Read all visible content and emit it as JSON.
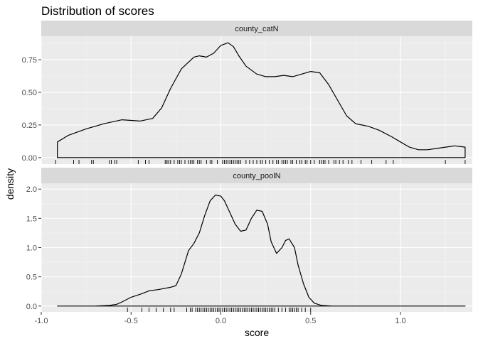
{
  "chart_data": {
    "type": "density",
    "title": "Distribution of scores",
    "xlabel": "score",
    "ylabel": "density",
    "xlim": [
      -1.0,
      1.4
    ],
    "x_ticks": [
      "-1.0",
      "-0.5",
      "0.0",
      "0.5",
      "1.0"
    ],
    "x_tick_values": [
      -1.0,
      -0.5,
      0.0,
      0.5,
      1.0
    ],
    "grid": true,
    "facets": [
      {
        "name": "county_catN",
        "ylim": [
          -0.05,
          0.93
        ],
        "y_ticks": [
          "0.00",
          "0.25",
          "0.50",
          "0.75"
        ],
        "y_tick_values": [
          0.0,
          0.25,
          0.5,
          0.75
        ],
        "curve": {
          "x": [
            -0.91,
            -0.85,
            -0.75,
            -0.65,
            -0.55,
            -0.45,
            -0.38,
            -0.33,
            -0.28,
            -0.22,
            -0.15,
            -0.12,
            -0.08,
            -0.04,
            0.0,
            0.04,
            0.07,
            0.1,
            0.14,
            0.2,
            0.25,
            0.3,
            0.35,
            0.4,
            0.45,
            0.5,
            0.55,
            0.6,
            0.65,
            0.7,
            0.75,
            0.82,
            0.88,
            0.95,
            1.0,
            1.05,
            1.1,
            1.15,
            1.2,
            1.3,
            1.36
          ],
          "density": [
            0.12,
            0.17,
            0.22,
            0.26,
            0.29,
            0.28,
            0.3,
            0.38,
            0.53,
            0.68,
            0.77,
            0.78,
            0.77,
            0.8,
            0.86,
            0.88,
            0.85,
            0.78,
            0.7,
            0.64,
            0.62,
            0.62,
            0.63,
            0.62,
            0.64,
            0.66,
            0.65,
            0.56,
            0.44,
            0.32,
            0.26,
            0.24,
            0.21,
            0.16,
            0.12,
            0.08,
            0.06,
            0.06,
            0.07,
            0.09,
            0.08
          ]
        },
        "rug": [
          -0.92,
          -0.82,
          -0.79,
          -0.72,
          -0.71,
          -0.62,
          -0.61,
          -0.59,
          -0.58,
          -0.46,
          -0.42,
          -0.4,
          -0.31,
          -0.3,
          -0.3,
          -0.29,
          -0.28,
          -0.26,
          -0.24,
          -0.23,
          -0.22,
          -0.2,
          -0.18,
          -0.17,
          -0.16,
          -0.15,
          -0.13,
          -0.12,
          -0.11,
          -0.08,
          -0.06,
          -0.05,
          -0.02,
          0.01,
          0.02,
          0.03,
          0.04,
          0.05,
          0.06,
          0.07,
          0.08,
          0.09,
          0.1,
          0.11,
          0.14,
          0.16,
          0.18,
          0.2,
          0.22,
          0.23,
          0.25,
          0.27,
          0.29,
          0.31,
          0.32,
          0.34,
          0.35,
          0.36,
          0.37,
          0.39,
          0.4,
          0.42,
          0.44,
          0.45,
          0.47,
          0.48,
          0.5,
          0.52,
          0.55,
          0.56,
          0.57,
          0.58,
          0.6,
          0.63,
          0.64,
          0.66,
          0.68,
          0.71,
          0.73,
          0.78,
          0.84,
          0.92,
          0.96,
          1.25,
          1.36
        ]
      },
      {
        "name": "county_poolN",
        "ylim": [
          -0.1,
          2.1
        ],
        "y_ticks": [
          "0.0",
          "0.5",
          "1.0",
          "1.5",
          "2.0"
        ],
        "y_tick_values": [
          0.0,
          0.5,
          1.0,
          1.5,
          2.0
        ],
        "curve": {
          "x": [
            -0.91,
            -0.7,
            -0.62,
            -0.58,
            -0.55,
            -0.5,
            -0.45,
            -0.4,
            -0.35,
            -0.28,
            -0.25,
            -0.22,
            -0.18,
            -0.15,
            -0.12,
            -0.09,
            -0.06,
            -0.03,
            0.0,
            0.02,
            0.05,
            0.08,
            0.11,
            0.14,
            0.17,
            0.2,
            0.23,
            0.26,
            0.28,
            0.31,
            0.34,
            0.36,
            0.38,
            0.41,
            0.43,
            0.46,
            0.49,
            0.52,
            0.56,
            0.62,
            0.7,
            0.8,
            1.0,
            1.2,
            1.36
          ],
          "density": [
            0.0,
            0.0,
            0.01,
            0.03,
            0.07,
            0.15,
            0.2,
            0.26,
            0.28,
            0.32,
            0.35,
            0.55,
            0.95,
            1.07,
            1.25,
            1.55,
            1.8,
            1.9,
            1.88,
            1.8,
            1.6,
            1.4,
            1.28,
            1.3,
            1.5,
            1.64,
            1.62,
            1.4,
            1.1,
            0.9,
            1.0,
            1.12,
            1.15,
            1.0,
            0.7,
            0.38,
            0.15,
            0.05,
            0.01,
            0.0,
            0.0,
            0.0,
            0.0,
            0.0,
            0.0
          ]
        },
        "rug": [
          -0.52,
          -0.44,
          -0.4,
          -0.36,
          -0.32,
          -0.28,
          -0.26,
          -0.19,
          -0.17,
          -0.16,
          -0.14,
          -0.13,
          -0.12,
          -0.11,
          -0.1,
          -0.09,
          -0.08,
          -0.07,
          -0.06,
          -0.05,
          -0.04,
          -0.03,
          -0.02,
          -0.01,
          0.0,
          0.01,
          0.02,
          0.03,
          0.04,
          0.05,
          0.06,
          0.07,
          0.08,
          0.09,
          0.1,
          0.11,
          0.12,
          0.13,
          0.14,
          0.15,
          0.16,
          0.17,
          0.18,
          0.19,
          0.2,
          0.21,
          0.22,
          0.23,
          0.24,
          0.25,
          0.26,
          0.27,
          0.28,
          0.29,
          0.3,
          0.32,
          0.34,
          0.36,
          0.38,
          0.39,
          0.4,
          0.41,
          0.42,
          0.43,
          0.45,
          0.47,
          0.5
        ]
      }
    ]
  },
  "colors": {
    "panel_bg": "#ebebeb",
    "strip_bg": "#d9d9d9",
    "grid_major": "#ffffff",
    "line": "#000000"
  }
}
